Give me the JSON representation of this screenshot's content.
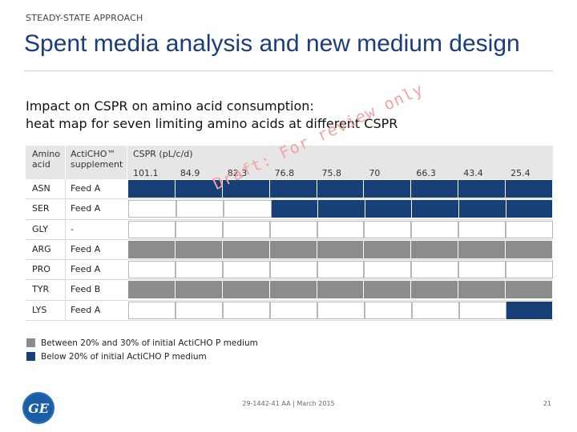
{
  "kicker": "STEADY-STATE APPROACH",
  "title": "Spent media analysis and new medium design",
  "subtitle": {
    "line1": "Impact on CSPR on amino acid consumption:",
    "line2": "heat map for seven limiting amino acids at different CSPR"
  },
  "table": {
    "header_aa": [
      "Amino",
      "acid"
    ],
    "header_supplement": [
      "ActiCHO™",
      "supplement"
    ],
    "header_cspr": "CSPR (pL/c/d)",
    "cspr_values": [
      "101.1",
      "84.9",
      "82.3",
      "76.8",
      "75.8",
      "70",
      "66.3",
      "43.4",
      "25.4"
    ],
    "rows": [
      {
        "aa": "ASN",
        "supplement": "Feed A",
        "cells": [
          "blue",
          "blue",
          "blue",
          "blue",
          "blue",
          "blue",
          "blue",
          "blue",
          "blue"
        ]
      },
      {
        "aa": "SER",
        "supplement": "Feed A",
        "cells": [
          "white",
          "white",
          "white",
          "blue",
          "blue",
          "blue",
          "blue",
          "blue",
          "blue"
        ]
      },
      {
        "aa": "GLY",
        "supplement": "-",
        "cells": [
          "white",
          "white",
          "white",
          "white",
          "white",
          "white",
          "white",
          "white",
          "white"
        ]
      },
      {
        "aa": "ARG",
        "supplement": "Feed A",
        "cells": [
          "gray",
          "gray",
          "gray",
          "gray",
          "gray",
          "gray",
          "gray",
          "gray",
          "gray"
        ]
      },
      {
        "aa": "PRO",
        "supplement": "Feed A",
        "cells": [
          "white",
          "white",
          "white",
          "white",
          "white",
          "white",
          "white",
          "white",
          "white"
        ]
      },
      {
        "aa": "TYR",
        "supplement": "Feed B",
        "cells": [
          "gray",
          "gray",
          "gray",
          "gray",
          "gray",
          "gray",
          "gray",
          "gray",
          "gray"
        ]
      },
      {
        "aa": "LYS",
        "supplement": "Feed A",
        "cells": [
          "white",
          "white",
          "white",
          "white",
          "white",
          "white",
          "white",
          "white",
          "blue"
        ]
      }
    ]
  },
  "watermark": "Draft: For review only",
  "legend": [
    {
      "label": "Between 20% and 30% of initial ActiCHO P medium",
      "color": "#8c8c8c"
    },
    {
      "label": "Below 20% of initial ActiCHO P medium",
      "color": "#173f78"
    }
  ],
  "logo_text": "GE",
  "footer": "29-1442-41 AA | March 2015",
  "page_number": "21"
}
